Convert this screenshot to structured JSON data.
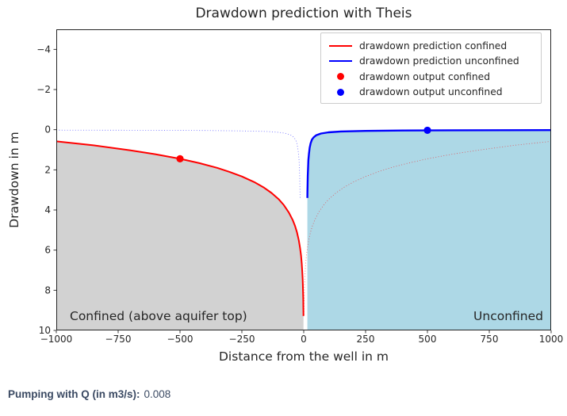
{
  "figure": {
    "title": "Drawdown prediction with Theis",
    "xlabel": "Distance from the well in m",
    "ylabel": "Drawdown in m"
  },
  "legend": {
    "items": [
      {
        "label": "drawdown prediction confined",
        "marker": "line",
        "color": "#ff0000"
      },
      {
        "label": "drawdown prediction unconfined",
        "marker": "line",
        "color": "#0000ff"
      },
      {
        "label": "drawdown output confined",
        "marker": "dot",
        "color": "#ff0000"
      },
      {
        "label": "drawdown output unconfined",
        "marker": "dot",
        "color": "#0000ff"
      }
    ]
  },
  "annotations": {
    "confined": "Confined (above aquifer top)",
    "unconfined": "Unconfined"
  },
  "widget": {
    "pump_label": "Pumping with Q (in m3/s):",
    "pump_value": "0.008"
  },
  "colors": {
    "confined_line": "#ff0000",
    "unconfined_line": "#0000ff",
    "confined_fill": "#d2d2d2",
    "unconfined_fill": "#add8e6",
    "frame": "#262626",
    "tick_text": "#262626",
    "widget_text": "#3b4a63"
  },
  "chart_data": {
    "type": "line",
    "title": "Drawdown prediction with Theis",
    "xlabel": "Distance from the well in m",
    "ylabel": "Drawdown in m",
    "xlim": [
      -1000,
      1000
    ],
    "ylim": [
      -5,
      10
    ],
    "y_axis_inverted": true,
    "grid": false,
    "legend_position": "upper right",
    "x_ticks": [
      -1000,
      -750,
      -500,
      -250,
      0,
      250,
      500,
      750,
      1000
    ],
    "y_ticks": [
      -4,
      -2,
      0,
      2,
      4,
      6,
      8,
      10
    ],
    "profiles": {
      "confined_r_s": [
        [
          1000,
          0.58
        ],
        [
          850,
          0.78
        ],
        [
          700,
          1.03
        ],
        [
          600,
          1.22
        ],
        [
          500,
          1.45
        ],
        [
          420,
          1.67
        ],
        [
          350,
          1.9
        ],
        [
          300,
          2.1
        ],
        [
          250,
          2.33
        ],
        [
          200,
          2.61
        ],
        [
          160,
          2.89
        ],
        [
          130,
          3.15
        ],
        [
          100,
          3.48
        ],
        [
          80,
          3.76
        ],
        [
          60,
          4.13
        ],
        [
          45,
          4.49
        ],
        [
          35,
          4.8
        ],
        [
          27,
          5.13
        ],
        [
          20,
          5.51
        ],
        [
          15,
          5.87
        ],
        [
          11,
          6.26
        ],
        [
          8,
          6.66
        ],
        [
          6,
          7.03
        ],
        [
          4.5,
          7.39
        ],
        [
          3.5,
          7.71
        ],
        [
          2.5,
          8.13
        ],
        [
          2,
          8.41
        ],
        [
          1.5,
          8.77
        ],
        [
          1.2,
          9.05
        ],
        [
          1,
          9.28
        ]
      ],
      "unconfined_r_s": [
        [
          1000,
          0.02
        ],
        [
          600,
          0.03
        ],
        [
          400,
          0.04
        ],
        [
          250,
          0.06
        ],
        [
          150,
          0.09
        ],
        [
          100,
          0.13
        ],
        [
          70,
          0.19
        ],
        [
          50,
          0.28
        ],
        [
          40,
          0.38
        ],
        [
          33,
          0.5
        ],
        [
          28,
          0.68
        ],
        [
          24,
          0.9
        ],
        [
          21,
          1.2
        ],
        [
          19,
          1.5
        ],
        [
          17.5,
          1.9
        ],
        [
          16.5,
          2.3
        ],
        [
          15.8,
          2.7
        ],
        [
          15.2,
          3.1
        ],
        [
          14.8,
          3.4
        ]
      ]
    },
    "series": [
      {
        "name": "drawdown prediction confined",
        "profile": "confined_r_s",
        "side": -1,
        "style": "solid",
        "color": "#ff0000",
        "fill": "#d2d2d2"
      },
      {
        "name": "confined prediction mirrored (dotted)",
        "profile": "confined_r_s",
        "side": 1,
        "style": "dotted",
        "color": "#ff0000",
        "fill": null
      },
      {
        "name": "drawdown prediction unconfined",
        "profile": "unconfined_r_s",
        "side": 1,
        "style": "solid",
        "color": "#0000ff",
        "fill": "#add8e6"
      },
      {
        "name": "unconfined prediction mirrored (dotted)",
        "profile": "unconfined_r_s",
        "side": -1,
        "style": "dotted",
        "color": "#0000ff",
        "fill": null
      }
    ],
    "markers": [
      {
        "name": "drawdown output confined",
        "x": -500,
        "drawdown": 1.45,
        "color": "#ff0000"
      },
      {
        "name": "drawdown output unconfined",
        "x": 500,
        "drawdown": 0.03,
        "color": "#0000ff"
      }
    ]
  }
}
